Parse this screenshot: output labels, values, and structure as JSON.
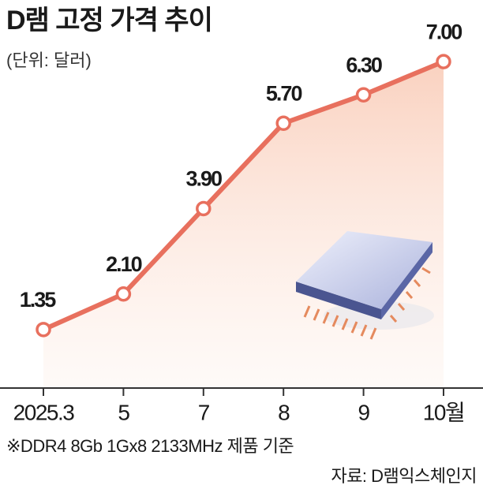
{
  "chart_data": {
    "type": "line",
    "title": "D램 고정 가격 추이",
    "subtitle": "(단위: 달러)",
    "categories": [
      "2025.3",
      "5",
      "7",
      "8",
      "9",
      "10월"
    ],
    "values": [
      1.35,
      2.1,
      3.9,
      5.7,
      6.3,
      7.0
    ],
    "value_labels": [
      "1.35",
      "2.10",
      "3.90",
      "5.70",
      "6.30",
      "7.00"
    ],
    "color": "#e8705e",
    "ylim": [
      0,
      8
    ],
    "note": "※DDR4 8Gb 1Gx8 2133MHz 제품 기준",
    "source": "자료: D램익스체인지"
  }
}
